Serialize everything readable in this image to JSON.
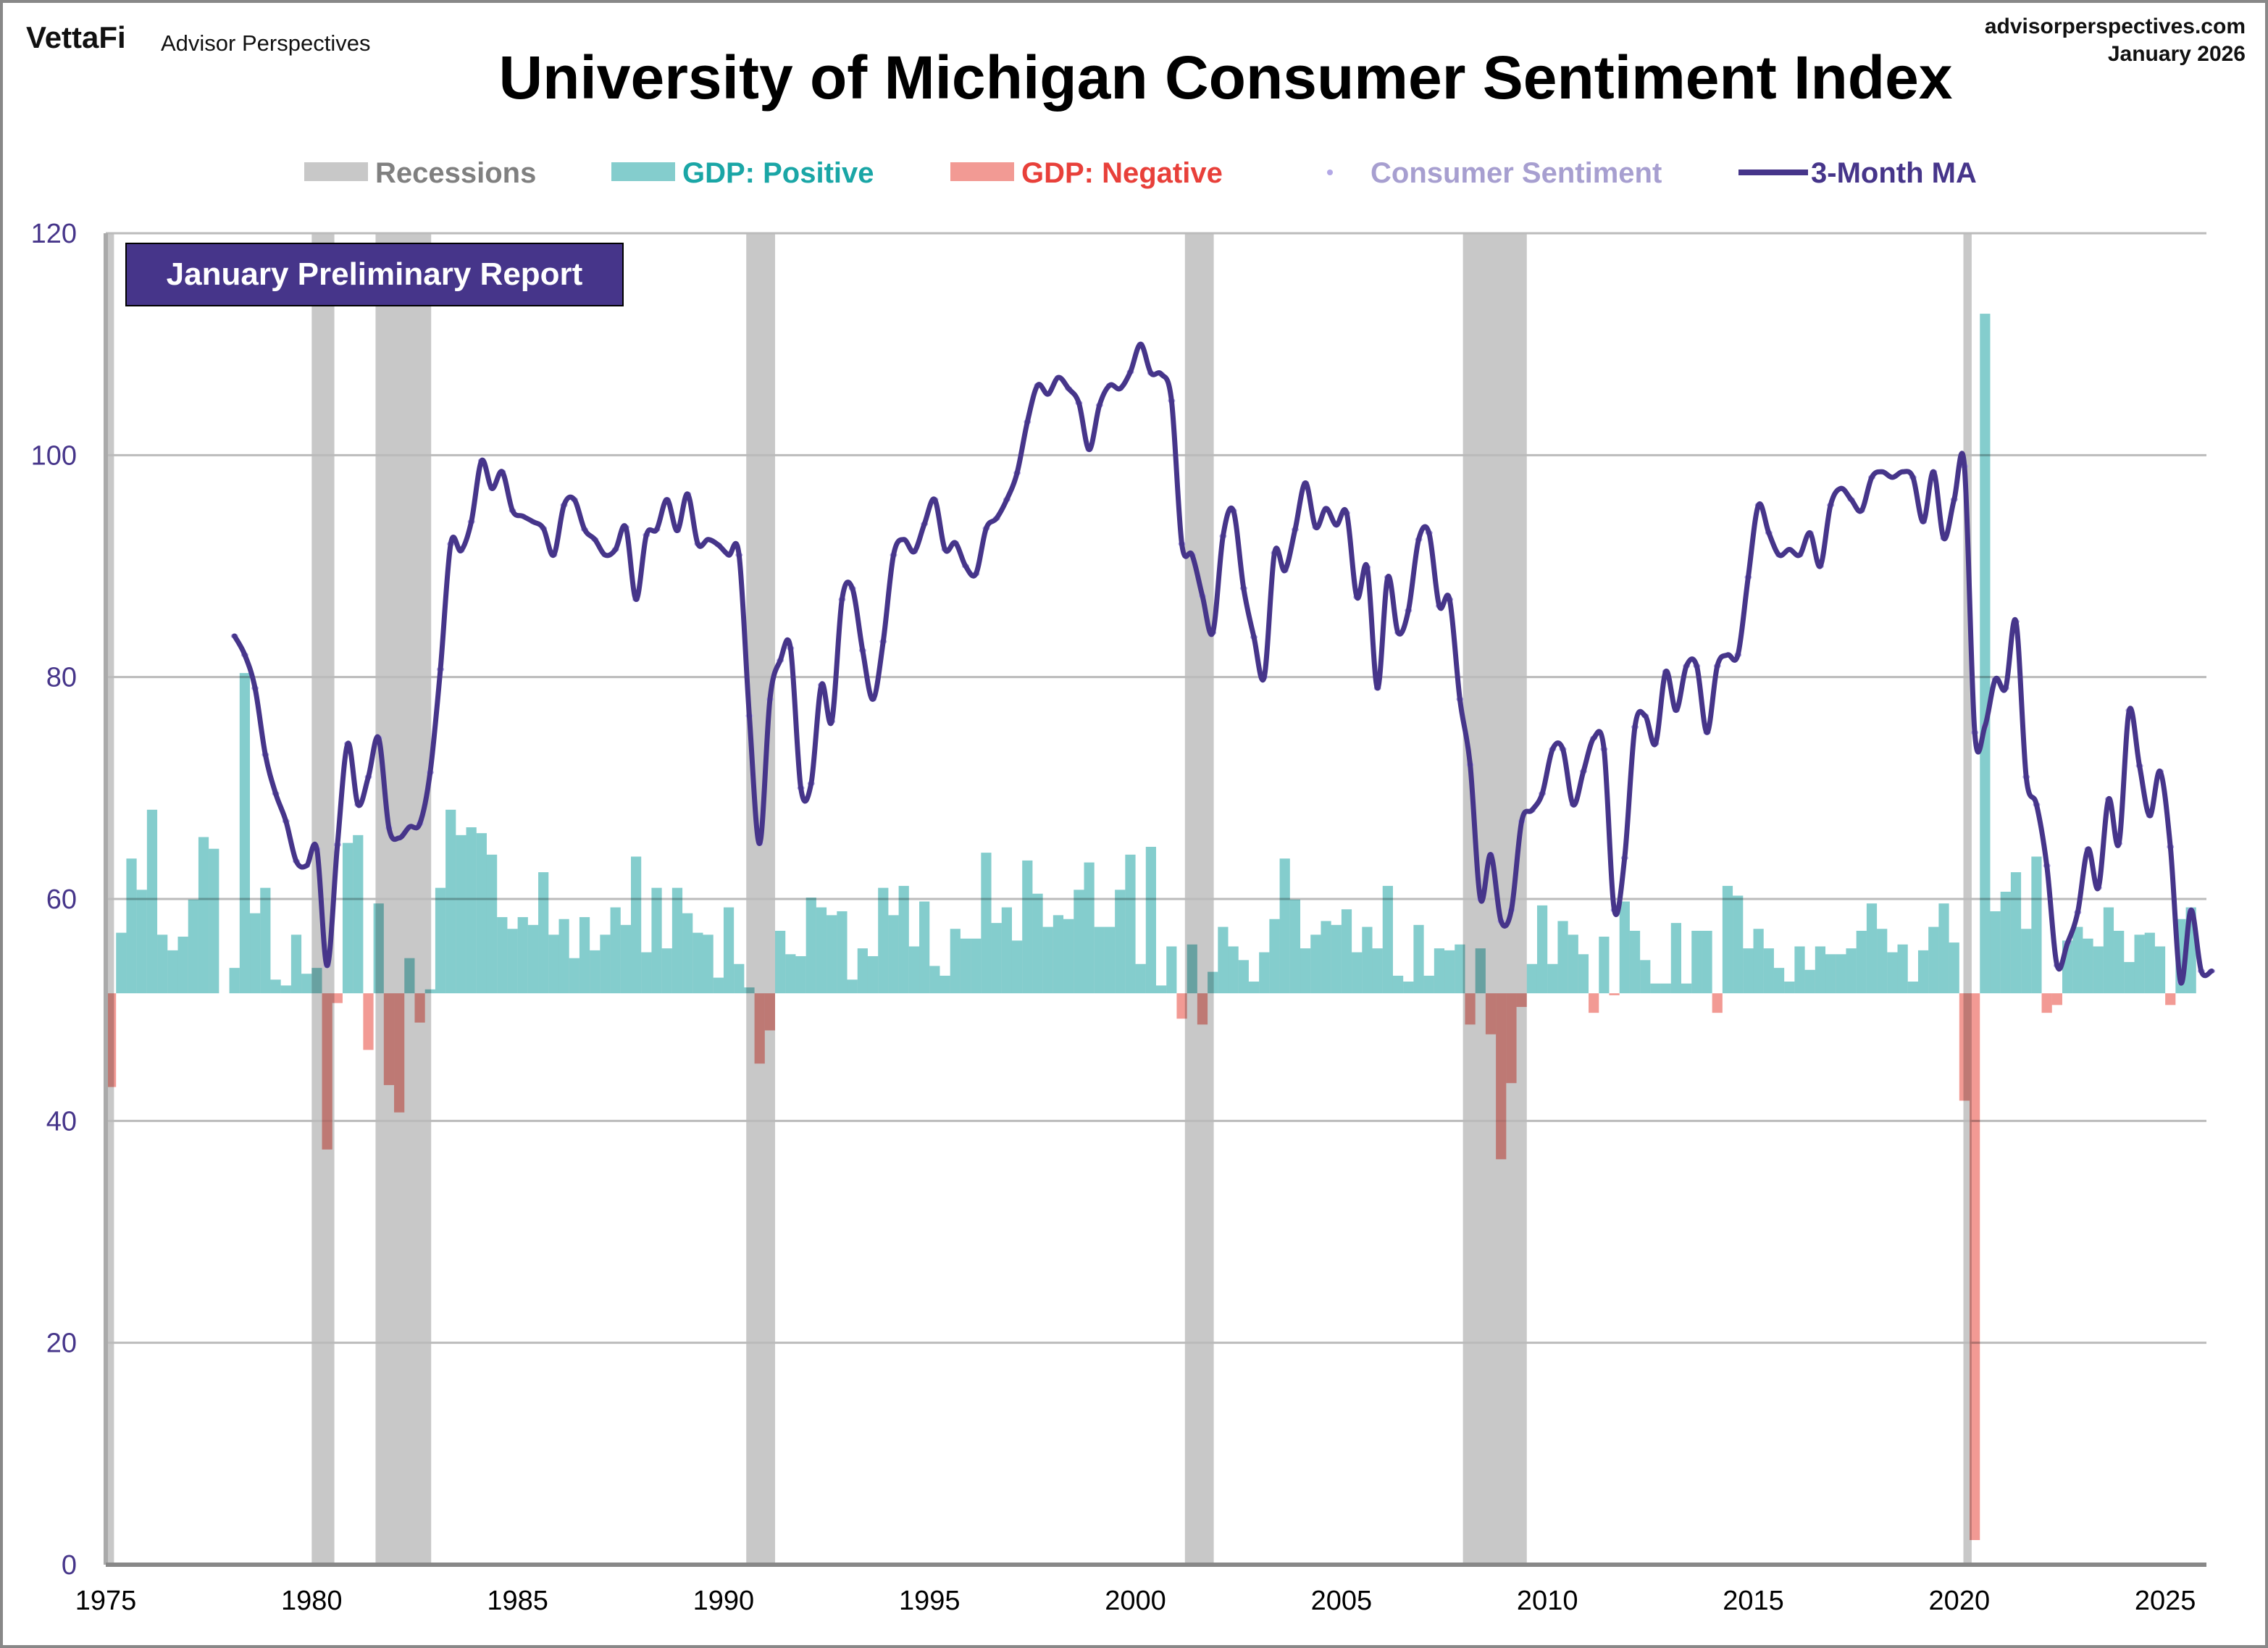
{
  "header": {
    "brand": "VettaFi",
    "brand_sub": "Advisor Perspectives",
    "site": "advisorperspectives.com",
    "date": "January 2026"
  },
  "badge": "January Preliminary Report",
  "legend": {
    "recessions": "Recessions",
    "gdp_positive": "GDP: Positive",
    "gdp_negative": "GDP: Negative",
    "sentiment": "Consumer Sentiment",
    "ma": "3-Month MA"
  },
  "chart_data": {
    "type": "bar+line+scatter",
    "title": "University of Michigan Consumer Sentiment Index",
    "ylim": [
      0,
      120
    ],
    "xlim": [
      1975,
      2026
    ],
    "y_ticks": [
      "0",
      "20",
      "40",
      "60",
      "80",
      "100",
      "120"
    ],
    "x_ticks": [
      "1975",
      "1980",
      "1985",
      "1990",
      "1995",
      "2000",
      "2005",
      "2010",
      "2015",
      "2020",
      "2025"
    ],
    "grid": true,
    "legend_position": "top",
    "recessions": [
      [
        1975.0,
        1975.2
      ],
      [
        1980.0,
        1980.55
      ],
      [
        1981.55,
        1982.9
      ],
      [
        1990.55,
        1991.25
      ],
      [
        2001.2,
        2001.9
      ],
      [
        2007.95,
        2009.5
      ],
      [
        2020.1,
        2020.3
      ]
    ],
    "sentiment": {
      "name": "Consumer Sentiment",
      "start": "1978Q1",
      "frequency": "quarterly",
      "values": [
        83.7,
        82.0,
        79.0,
        73.0,
        69.5,
        67.0,
        63.4,
        63.0,
        64.5,
        54.0,
        64.9,
        74.0,
        68.5,
        71.0,
        74.5,
        66.4,
        65.5,
        66.5,
        66.8,
        71.4,
        80.7,
        92.0,
        91.4,
        94.0,
        99.5,
        97.0,
        98.5,
        95.0,
        94.5,
        94.0,
        93.4,
        91.0,
        95.5,
        96.0,
        93.3,
        92.4,
        91.0,
        91.5,
        93.5,
        87.0,
        92.8,
        93.3,
        96.0,
        93.2,
        96.5,
        92.0,
        92.4,
        91.9,
        91.0,
        91.0,
        76.5,
        65.0,
        78.0,
        81.5,
        82.6,
        70.0,
        70.4,
        79.3,
        76.0,
        87.0,
        88.0,
        82.4,
        78.0,
        83.2,
        91.0,
        92.4,
        91.3,
        93.8,
        96.0,
        91.5,
        92.1,
        90.0,
        89.3,
        93.4,
        94.3,
        96.0,
        98.4,
        103.0,
        106.3,
        105.5,
        107.0,
        106.0,
        104.7,
        100.5,
        104.5,
        106.3,
        106.0,
        107.5,
        110.0,
        107.4,
        107.3,
        104.9,
        92.0,
        91.0,
        87.3,
        84.0,
        92.7,
        95.0,
        88.0,
        83.6,
        80.0,
        91.2,
        89.6,
        93.3,
        97.5,
        93.5,
        95.2,
        93.7,
        94.8,
        87.2,
        89.9,
        79.0,
        89.0,
        84.0,
        86.0,
        92.4,
        93.0,
        86.4,
        87.0,
        78.0,
        72.1,
        60.0,
        64.0,
        58.0,
        59.0,
        67.0,
        68.0,
        69.5,
        73.5,
        73.5,
        68.5,
        71.5,
        74.5,
        73.5,
        59.0,
        63.7,
        75.5,
        76.5,
        74.0,
        80.5,
        77.0,
        81.0,
        81.0,
        75.0,
        81.0,
        82.0,
        82.0,
        89.0,
        95.5,
        93.0,
        91.0,
        91.5,
        91.0,
        93.0,
        90.0,
        95.5,
        97.0,
        96.0,
        95.0,
        98.0,
        98.5,
        98.0,
        98.5,
        98.0,
        94.0,
        98.5,
        92.5,
        96.0,
        99.0,
        75.0,
        75.6,
        79.8,
        79.0,
        85.0,
        71.0,
        68.5,
        63.0,
        54.0,
        56.0,
        58.8,
        64.5,
        61.0,
        69.0,
        65.0,
        77.0,
        72.0,
        67.5,
        71.5,
        64.7,
        52.5,
        59.0,
        53.5,
        53.5
      ]
    },
    "ma": {
      "name": "3-Month MA"
    },
    "gdp": {
      "start": "1975Q1",
      "frequency": "quarterly",
      "unit": "% annualized",
      "values": [
        -4.8,
        3.1,
        6.9,
        5.3,
        9.4,
        3.0,
        2.2,
        2.9,
        4.8,
        8.0,
        7.4,
        0.0,
        1.3,
        16.4,
        4.1,
        5.4,
        0.7,
        0.4,
        3.0,
        1.0,
        1.3,
        -8.0,
        -0.5,
        7.7,
        8.1,
        -2.9,
        4.6,
        -4.7,
        -6.1,
        1.8,
        -1.5,
        0.2,
        5.4,
        9.4,
        8.1,
        8.5,
        8.2,
        7.1,
        3.9,
        3.3,
        3.9,
        3.5,
        6.2,
        3.0,
        3.8,
        1.8,
        3.9,
        2.2,
        3.0,
        4.4,
        3.5,
        7.0,
        2.1,
        5.4,
        2.3,
        5.4,
        4.1,
        3.1,
        3.0,
        0.8,
        4.4,
        1.5,
        0.3,
        -3.6,
        -1.9,
        3.2,
        2.0,
        1.9,
        4.9,
        4.4,
        4.0,
        4.2,
        0.7,
        2.3,
        1.9,
        5.4,
        4.0,
        5.5,
        2.4,
        4.7,
        1.4,
        0.9,
        3.3,
        2.8,
        2.8,
        7.2,
        3.6,
        4.4,
        2.7,
        6.8,
        5.1,
        3.4,
        4.0,
        3.8,
        5.3,
        6.7,
        3.4,
        3.4,
        5.3,
        7.1,
        1.5,
        7.5,
        0.4,
        2.4,
        -1.3,
        2.5,
        -1.6,
        1.1,
        3.4,
        2.4,
        1.7,
        0.6,
        2.1,
        3.8,
        6.9,
        4.8,
        2.3,
        3.0,
        3.7,
        3.5,
        4.3,
        2.1,
        3.4,
        2.3,
        5.5,
        0.9,
        0.6,
        3.5,
        0.9,
        2.3,
        2.2,
        2.5,
        -1.6,
        2.3,
        -2.1,
        -8.5,
        -4.6,
        -0.7,
        1.5,
        4.5,
        1.5,
        3.7,
        3.0,
        2.0,
        -1.0,
        2.9,
        -0.1,
        4.7,
        3.2,
        1.7,
        0.5,
        0.5,
        3.6,
        0.5,
        3.2,
        3.2,
        -1.0,
        5.5,
        5.0,
        2.3,
        3.3,
        2.3,
        1.3,
        0.6,
        2.4,
        1.2,
        2.4,
        2.0,
        2.0,
        2.3,
        3.2,
        4.6,
        3.3,
        2.1,
        2.5,
        0.6,
        2.2,
        3.4,
        4.6,
        2.6,
        -5.5,
        -28.0,
        34.8,
        4.2,
        5.2,
        6.2,
        3.3,
        7.0,
        -1.0,
        -0.6,
        2.7,
        3.4,
        2.8,
        2.4,
        4.4,
        3.2,
        1.6,
        3.0,
        3.1,
        2.4,
        -0.6,
        3.8,
        4.4
      ]
    },
    "colors": {
      "recession": "#C8C8C8",
      "gdp_positive": "#84CDCD",
      "gdp_negative": "#F29A94",
      "sentiment_dots": "#B3A8E6",
      "ma_line": "#46358A",
      "legend_recessions_text": "#808080",
      "legend_positive_text": "#1AA6A6",
      "legend_negative_text": "#E8403A",
      "legend_sentiment_text": "#A79FD0",
      "axis_label": "#46358A",
      "badge": "#46358A"
    }
  }
}
